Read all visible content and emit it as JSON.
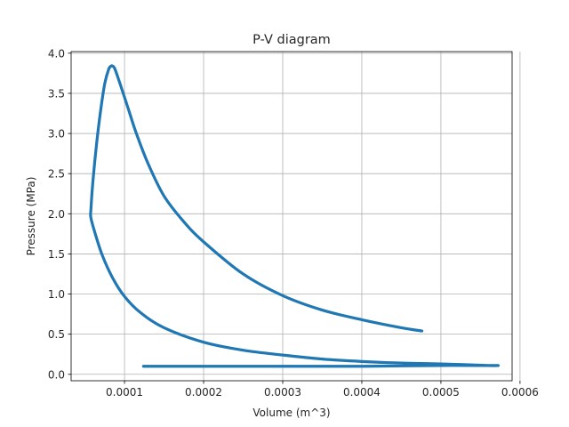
{
  "chart_data": {
    "type": "line",
    "title": "P-V diagram",
    "xlabel": "Volume (m^3)",
    "ylabel": "Pressure (MPa)",
    "xlim": [
      3.25e-05,
      0.00059
    ],
    "ylim": [
      -0.08,
      4.02
    ],
    "grid": true,
    "xticks": [
      0.0001,
      0.0002,
      0.0003,
      0.0004,
      0.0005,
      0.0006
    ],
    "xtick_labels": [
      "0.0001",
      "0.0002",
      "0.0003",
      "0.0004",
      "0.0005",
      "0.0006"
    ],
    "yticks": [
      0.0,
      0.5,
      1.0,
      1.5,
      2.0,
      2.5,
      3.0,
      3.5,
      4.0
    ],
    "ytick_labels": [
      "0.0",
      "0.5",
      "1.0",
      "1.5",
      "2.0",
      "2.5",
      "3.0",
      "3.5",
      "4.0"
    ],
    "line_color": "#1f77b4",
    "series": [
      {
        "x": [
          0.000124,
          0.00015,
          0.0002,
          0.00025,
          0.0003,
          0.00035,
          0.0004,
          0.00045,
          0.0005,
          0.00055,
          0.000572,
          0.00056,
          0.0005,
          0.00045,
          0.0004,
          0.00035,
          0.0003,
          0.00025,
          0.0002,
          0.00015,
          0.00012,
          0.0001,
          8.5e-05,
          7.2e-05,
          6.3e-05,
          5.75e-05,
          5.75e-05,
          6e-05,
          6.5e-05,
          7e-05,
          7.5e-05,
          8e-05,
          8.3e-05,
          8.5e-05,
          8.8e-05,
          9.5e-05,
          0.000105,
          0.000115,
          0.00013,
          0.00015,
          0.000175,
          0.0002,
          0.00025,
          0.0003,
          0.00035,
          0.0004,
          0.00045,
          0.000476
        ],
        "y": [
          0.1,
          0.1,
          0.1,
          0.1,
          0.1,
          0.1,
          0.1,
          0.105,
          0.11,
          0.11,
          0.11,
          0.11,
          0.13,
          0.14,
          0.16,
          0.19,
          0.24,
          0.3,
          0.4,
          0.58,
          0.77,
          0.97,
          1.2,
          1.48,
          1.75,
          1.95,
          2.05,
          2.4,
          2.9,
          3.3,
          3.62,
          3.8,
          3.84,
          3.84,
          3.8,
          3.6,
          3.3,
          3.0,
          2.62,
          2.22,
          1.9,
          1.65,
          1.25,
          0.98,
          0.8,
          0.68,
          0.58,
          0.54
        ]
      }
    ]
  }
}
